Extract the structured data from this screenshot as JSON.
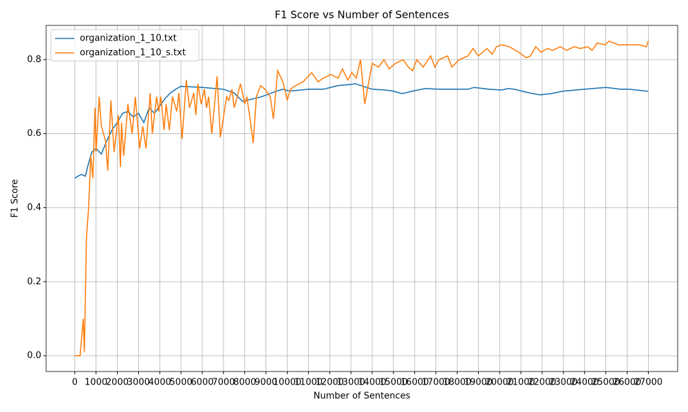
{
  "chart_data": {
    "type": "line",
    "title": "F1 Score vs Number of Sentences",
    "x_label": "Number of Sentences",
    "y_label": "F1 Score",
    "xlim": [
      -1351,
      28381
    ],
    "ylim": [
      -0.0425,
      0.8925
    ],
    "xticks": [
      0,
      1000,
      2000,
      3000,
      4000,
      5000,
      6000,
      7000,
      8000,
      9000,
      10000,
      11000,
      12000,
      13000,
      14000,
      15000,
      16000,
      17000,
      18000,
      19000,
      20000,
      21000,
      22000,
      23000,
      24000,
      25000,
      26000,
      27000
    ],
    "yticks": [
      {
        "value": 0,
        "label": "0.0"
      },
      0.2,
      0.4,
      0.6,
      0.8
    ],
    "grid": true,
    "legend": "upper-left",
    "series": [
      {
        "name": "organization_1_10.txt",
        "color": "#1f77b4",
        "x": [
          0,
          300,
          500,
          600,
          800,
          1000,
          1250,
          1500,
          1750,
          2000,
          2250,
          2500,
          2750,
          3000,
          3250,
          3500,
          3750,
          4000,
          4250,
          4500,
          4750,
          5000,
          6000,
          7000,
          7500,
          7900,
          8800,
          9500,
          9800,
          10100,
          11000,
          11700,
          12400,
          13000,
          13200,
          14000,
          14600,
          15000,
          15400,
          15900,
          16500,
          17200,
          18500,
          18800,
          19500,
          20100,
          20400,
          20700,
          21400,
          21900,
          22400,
          23000,
          24000,
          25000,
          25700,
          26100,
          26900,
          27000
        ],
        "values": [
          0.48,
          0.49,
          0.485,
          0.51,
          0.55,
          0.56,
          0.545,
          0.58,
          0.61,
          0.63,
          0.655,
          0.66,
          0.645,
          0.655,
          0.63,
          0.67,
          0.655,
          0.675,
          0.695,
          0.71,
          0.72,
          0.728,
          0.725,
          0.72,
          0.71,
          0.687,
          0.7,
          0.715,
          0.72,
          0.715,
          0.72,
          0.72,
          0.73,
          0.733,
          0.735,
          0.72,
          0.718,
          0.715,
          0.708,
          0.715,
          0.722,
          0.72,
          0.72,
          0.725,
          0.72,
          0.718,
          0.722,
          0.72,
          0.71,
          0.705,
          0.708,
          0.715,
          0.72,
          0.725,
          0.72,
          0.72,
          0.715,
          0.715
        ]
      },
      {
        "name": "organization_1_10_s.txt",
        "color": "#ff7f0e",
        "x": [
          0,
          250,
          400,
          450,
          550,
          650,
          750,
          850,
          950,
          1000,
          1150,
          1250,
          1450,
          1550,
          1700,
          1850,
          2050,
          2150,
          2200,
          2300,
          2500,
          2700,
          2850,
          3050,
          3200,
          3350,
          3550,
          3650,
          3850,
          3950,
          4050,
          4200,
          4300,
          4450,
          4600,
          4800,
          4900,
          5050,
          5250,
          5400,
          5600,
          5700,
          5800,
          5950,
          6100,
          6200,
          6300,
          6450,
          6700,
          6850,
          7150,
          7250,
          7400,
          7500,
          7600,
          7800,
          8000,
          8100,
          8250,
          8400,
          8550,
          8750,
          8950,
          9200,
          9350,
          9550,
          9800,
          10000,
          10150,
          10400,
          10750,
          11150,
          11450,
          11700,
          12050,
          12400,
          12600,
          12850,
          13050,
          13250,
          13450,
          13650,
          14000,
          14300,
          14550,
          14800,
          15100,
          15450,
          15700,
          15900,
          16100,
          16400,
          16750,
          16950,
          17150,
          17550,
          17750,
          18100,
          18500,
          18750,
          19000,
          19400,
          19650,
          19850,
          20100,
          20450,
          20900,
          21250,
          21450,
          21700,
          21950,
          22250,
          22500,
          22850,
          23150,
          23500,
          23800,
          24150,
          24350,
          24600,
          24950,
          25150,
          25600,
          26100,
          26600,
          26900,
          27000
        ],
        "values": [
          0,
          0,
          0.1,
          0.01,
          0.32,
          0.4,
          0.54,
          0.48,
          0.67,
          0.55,
          0.7,
          0.62,
          0.58,
          0.5,
          0.69,
          0.55,
          0.65,
          0.51,
          0.63,
          0.54,
          0.68,
          0.6,
          0.7,
          0.56,
          0.62,
          0.56,
          0.71,
          0.6,
          0.7,
          0.66,
          0.7,
          0.61,
          0.68,
          0.61,
          0.7,
          0.66,
          0.71,
          0.585,
          0.745,
          0.67,
          0.71,
          0.65,
          0.735,
          0.68,
          0.72,
          0.67,
          0.7,
          0.6,
          0.755,
          0.59,
          0.7,
          0.69,
          0.72,
          0.67,
          0.69,
          0.735,
          0.68,
          0.7,
          0.64,
          0.575,
          0.7,
          0.73,
          0.72,
          0.7,
          0.64,
          0.77,
          0.74,
          0.69,
          0.72,
          0.73,
          0.74,
          0.765,
          0.74,
          0.75,
          0.76,
          0.75,
          0.775,
          0.745,
          0.765,
          0.75,
          0.8,
          0.68,
          0.79,
          0.78,
          0.8,
          0.775,
          0.79,
          0.8,
          0.78,
          0.77,
          0.8,
          0.78,
          0.81,
          0.78,
          0.8,
          0.81,
          0.78,
          0.8,
          0.81,
          0.83,
          0.81,
          0.83,
          0.815,
          0.835,
          0.84,
          0.835,
          0.82,
          0.805,
          0.81,
          0.835,
          0.82,
          0.83,
          0.825,
          0.835,
          0.825,
          0.835,
          0.83,
          0.835,
          0.825,
          0.845,
          0.84,
          0.85,
          0.84,
          0.84,
          0.84,
          0.835,
          0.85
        ]
      }
    ]
  }
}
